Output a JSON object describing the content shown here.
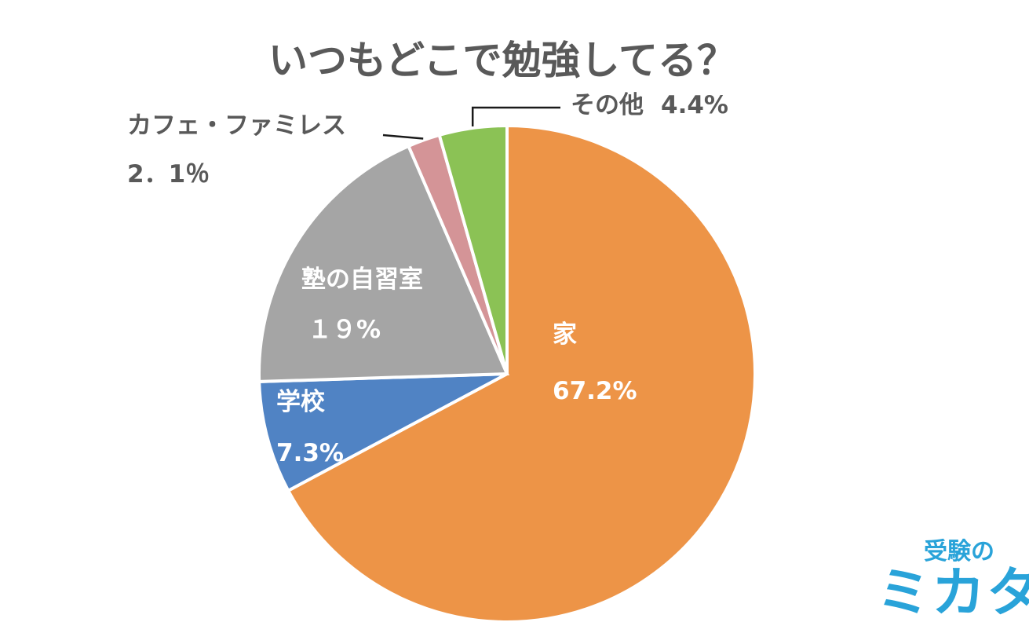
{
  "chart_data": {
    "type": "pie",
    "title": "いつもどこで勉強してる？",
    "slices": [
      {
        "name": "家",
        "value": 67.2,
        "value_label": "67.2%",
        "color": "#ED9447"
      },
      {
        "name": "学校",
        "value": 7.3,
        "value_label": "7.3%",
        "color": "#5083C4"
      },
      {
        "name": "塾の自習室",
        "value": 19,
        "value_label": "１９%",
        "color": "#A5A5A5"
      },
      {
        "name": "カフェ・ファミレス",
        "value": 2.1,
        "value_label": "2．1％",
        "color": "#D49497"
      },
      {
        "name": "その他",
        "value": 4.4,
        "value_label": "4.4%",
        "color": "#8BC255"
      }
    ],
    "start_angle_deg": 0,
    "direction": "clockwise",
    "legend": "none"
  },
  "logo": {
    "line1": "受験の",
    "line2": "ミカタ",
    "color": "#29a3d9"
  }
}
